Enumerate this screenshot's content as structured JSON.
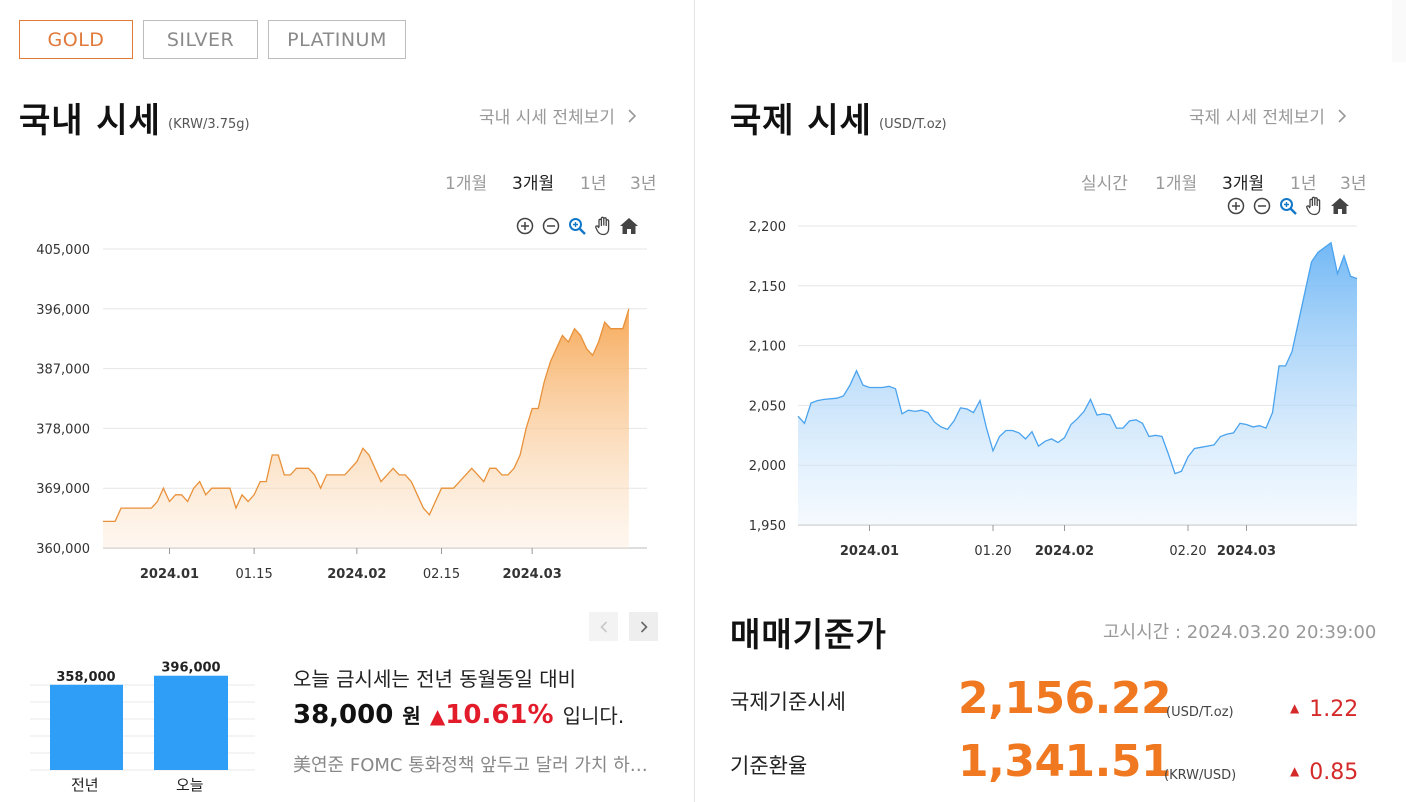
{
  "tabs": [
    {
      "label": "GOLD",
      "active": true
    },
    {
      "label": "SILVER",
      "active": false
    },
    {
      "label": "PLATINUM",
      "active": false
    }
  ],
  "domestic": {
    "title": "국내 시세",
    "unit": "(KRW/3.75g)",
    "more_label": "국내 시세 전체보기",
    "periods": [
      "1개월",
      "3개월",
      "1년",
      "3년"
    ],
    "active_period": "3개월",
    "chart_data": {
      "type": "area",
      "ylim": [
        360000,
        405000
      ],
      "yticks": [
        "405,000",
        "396,000",
        "387,000",
        "378,000",
        "369,000",
        "360,000"
      ],
      "ytick_values": [
        405000,
        396000,
        387000,
        378000,
        369000,
        360000
      ],
      "xticks": [
        {
          "label": "2024.01",
          "bold": true,
          "day": 11
        },
        {
          "label": "01.15",
          "bold": false,
          "day": 25
        },
        {
          "label": "2024.02",
          "bold": true,
          "day": 42
        },
        {
          "label": "02.15",
          "bold": false,
          "day": 56
        },
        {
          "label": "2024.03",
          "bold": true,
          "day": 71
        }
      ],
      "x_range": [
        0,
        90
      ],
      "color": "#f0a04a",
      "points": [
        [
          0,
          364000
        ],
        [
          2,
          364000
        ],
        [
          3,
          366000
        ],
        [
          5,
          366000
        ],
        [
          7,
          366000
        ],
        [
          8,
          366000
        ],
        [
          9,
          367000
        ],
        [
          10,
          369000
        ],
        [
          11,
          367000
        ],
        [
          12,
          368000
        ],
        [
          13,
          368000
        ],
        [
          14,
          367000
        ],
        [
          15,
          369000
        ],
        [
          16,
          370000
        ],
        [
          17,
          368000
        ],
        [
          18,
          369000
        ],
        [
          19,
          369000
        ],
        [
          20,
          369000
        ],
        [
          21,
          369000
        ],
        [
          22,
          366000
        ],
        [
          23,
          368000
        ],
        [
          24,
          367000
        ],
        [
          25,
          368000
        ],
        [
          26,
          370000
        ],
        [
          27,
          370000
        ],
        [
          28,
          374000
        ],
        [
          29,
          374000
        ],
        [
          30,
          371000
        ],
        [
          31,
          371000
        ],
        [
          32,
          372000
        ],
        [
          33,
          372000
        ],
        [
          34,
          372000
        ],
        [
          35,
          371000
        ],
        [
          36,
          369000
        ],
        [
          37,
          371000
        ],
        [
          38,
          371000
        ],
        [
          39,
          371000
        ],
        [
          40,
          371000
        ],
        [
          41,
          372000
        ],
        [
          42,
          373000
        ],
        [
          43,
          375000
        ],
        [
          44,
          374000
        ],
        [
          45,
          372000
        ],
        [
          46,
          370000
        ],
        [
          47,
          371000
        ],
        [
          48,
          372000
        ],
        [
          49,
          371000
        ],
        [
          50,
          371000
        ],
        [
          51,
          370000
        ],
        [
          52,
          368000
        ],
        [
          53,
          366000
        ],
        [
          54,
          365000
        ],
        [
          55,
          367000
        ],
        [
          56,
          369000
        ],
        [
          57,
          369000
        ],
        [
          58,
          369000
        ],
        [
          59,
          370000
        ],
        [
          60,
          371000
        ],
        [
          61,
          372000
        ],
        [
          62,
          371000
        ],
        [
          63,
          370000
        ],
        [
          64,
          372000
        ],
        [
          65,
          372000
        ],
        [
          66,
          371000
        ],
        [
          67,
          371000
        ],
        [
          68,
          372000
        ],
        [
          69,
          374000
        ],
        [
          70,
          378000
        ],
        [
          71,
          381000
        ],
        [
          72,
          381000
        ],
        [
          73,
          385000
        ],
        [
          74,
          388000
        ],
        [
          75,
          390000
        ],
        [
          76,
          392000
        ],
        [
          77,
          391000
        ],
        [
          78,
          393000
        ],
        [
          79,
          392000
        ],
        [
          80,
          390000
        ],
        [
          81,
          389000
        ],
        [
          82,
          391000
        ],
        [
          83,
          394000
        ],
        [
          84,
          393000
        ],
        [
          85,
          393000
        ],
        [
          86,
          393000
        ],
        [
          87,
          396000
        ]
      ]
    },
    "compare": {
      "prev_label": "전년",
      "prev_value": 358000,
      "prev_text": "358,000",
      "today_label": "오늘",
      "today_value": 396000,
      "today_text": "396,000",
      "bar_color": "#2e9ef6"
    },
    "message": {
      "line1": "오늘 금시세는 전년 동월동일 대비",
      "amount": "38,000",
      "won": "원",
      "percent": "10.61%",
      "tail": "입니다."
    },
    "news": "美연준 FOMC 통화정책 앞두고 달러 가치 하락에 금값 상승"
  },
  "international": {
    "title": "국제 시세",
    "unit": "(USD/T.oz)",
    "more_label": "국제 시세 전체보기",
    "periods": [
      "실시간",
      "1개월",
      "3개월",
      "1년",
      "3년"
    ],
    "active_period": "3개월",
    "chart_data": {
      "type": "area",
      "ylim": [
        1950,
        2200
      ],
      "yticks": [
        "2,200",
        "2,150",
        "2,100",
        "2,050",
        "2,000",
        "1,950"
      ],
      "ytick_values": [
        2200,
        2150,
        2100,
        2050,
        2000,
        1950
      ],
      "xticks": [
        {
          "label": "2024.01",
          "bold": true,
          "day": 11
        },
        {
          "label": "01.20",
          "bold": false,
          "day": 30
        },
        {
          "label": "2024.02",
          "bold": true,
          "day": 41
        },
        {
          "label": "02.20",
          "bold": false,
          "day": 60
        },
        {
          "label": "2024.03",
          "bold": true,
          "day": 69
        }
      ],
      "x_range": [
        0,
        86
      ],
      "color": "#5aaaf0",
      "points": [
        [
          0,
          2041
        ],
        [
          1,
          2035
        ],
        [
          2,
          2052
        ],
        [
          3,
          2054
        ],
        [
          4,
          2055
        ],
        [
          6,
          2056
        ],
        [
          7,
          2058
        ],
        [
          8,
          2067
        ],
        [
          9,
          2079
        ],
        [
          10,
          2067
        ],
        [
          11,
          2065
        ],
        [
          12,
          2065
        ],
        [
          13,
          2065
        ],
        [
          14,
          2066
        ],
        [
          15,
          2064
        ],
        [
          16,
          2043
        ],
        [
          17,
          2046
        ],
        [
          18,
          2045
        ],
        [
          19,
          2046
        ],
        [
          20,
          2044
        ],
        [
          21,
          2036
        ],
        [
          22,
          2032
        ],
        [
          23,
          2030
        ],
        [
          24,
          2037
        ],
        [
          25,
          2048
        ],
        [
          26,
          2047
        ],
        [
          27,
          2044
        ],
        [
          28,
          2054
        ],
        [
          29,
          2031
        ],
        [
          30,
          2012
        ],
        [
          31,
          2024
        ],
        [
          32,
          2029
        ],
        [
          33,
          2029
        ],
        [
          34,
          2027
        ],
        [
          35,
          2022
        ],
        [
          36,
          2028
        ],
        [
          37,
          2016
        ],
        [
          38,
          2020
        ],
        [
          39,
          2022
        ],
        [
          40,
          2019
        ],
        [
          41,
          2023
        ],
        [
          42,
          2034
        ],
        [
          43,
          2039
        ],
        [
          44,
          2045
        ],
        [
          45,
          2055
        ],
        [
          46,
          2042
        ],
        [
          47,
          2043
        ],
        [
          48,
          2042
        ],
        [
          49,
          2031
        ],
        [
          50,
          2031
        ],
        [
          51,
          2037
        ],
        [
          52,
          2038
        ],
        [
          53,
          2035
        ],
        [
          54,
          2024
        ],
        [
          55,
          2025
        ],
        [
          56,
          2024
        ],
        [
          57,
          2009
        ],
        [
          58,
          1993
        ],
        [
          59,
          1995
        ],
        [
          60,
          2007
        ],
        [
          61,
          2014
        ],
        [
          62,
          2015
        ],
        [
          63,
          2016
        ],
        [
          64,
          2017
        ],
        [
          65,
          2024
        ],
        [
          66,
          2026
        ],
        [
          67,
          2027
        ],
        [
          68,
          2035
        ],
        [
          69,
          2034
        ],
        [
          70,
          2032
        ],
        [
          71,
          2033
        ],
        [
          72,
          2031
        ],
        [
          73,
          2044
        ],
        [
          74,
          2083
        ],
        [
          75,
          2083
        ],
        [
          76,
          2095
        ],
        [
          77,
          2120
        ],
        [
          78,
          2145
        ],
        [
          79,
          2170
        ],
        [
          80,
          2178
        ],
        [
          81,
          2182
        ],
        [
          82,
          2186
        ],
        [
          83,
          2160
        ],
        [
          84,
          2175
        ],
        [
          85,
          2158
        ],
        [
          86,
          2156
        ]
      ]
    },
    "basis": {
      "title": "매매기준가",
      "notice": "고시시간 : 2024.03.20 20:39:00",
      "rows": [
        {
          "label": "국제기준시세",
          "value": "2,156.22",
          "unit": "(USD/T.oz)",
          "change": "1.22"
        },
        {
          "label": "기준환율",
          "value": "1,341.51",
          "unit": "(KRW/USD)",
          "change": "0.85"
        }
      ]
    }
  },
  "colors": {
    "accent": "#e0793a",
    "up": "#e21c2a",
    "value_orange": "#f07820"
  }
}
